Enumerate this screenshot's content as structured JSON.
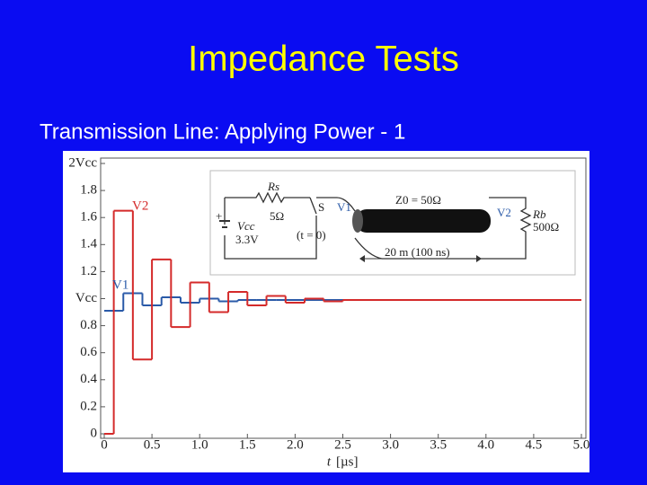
{
  "slide": {
    "title": "Impedance Tests",
    "subtitle": "Transmission Line: Applying Power - 1"
  },
  "chart_data": {
    "type": "step",
    "x_label": "t",
    "x_unit": "[µs]",
    "xlim": [
      0,
      5
    ],
    "ylim": [
      0,
      2
    ],
    "xticks": [
      0,
      0.5,
      {
        "value": 1,
        "label": "1.0"
      },
      1.5,
      {
        "value": 2,
        "label": "2.0"
      },
      2.5,
      {
        "value": 3,
        "label": "3.0"
      },
      3.5,
      {
        "value": 4,
        "label": "4.0"
      },
      4.5,
      {
        "value": 5,
        "label": "5.0"
      }
    ],
    "yticks": [
      0,
      0.2,
      0.4,
      0.6,
      0.8,
      {
        "value": 1,
        "label": "Vcc"
      },
      1.2,
      1.4,
      1.6,
      1.8,
      {
        "value": 2,
        "label": "2Vcc"
      }
    ],
    "grid": false,
    "series": [
      {
        "name": "V1",
        "color": "#2a5aa8",
        "x": [
          0,
          0.2,
          0.4,
          0.6,
          0.8,
          1.0,
          1.2,
          1.4,
          1.6,
          1.8
        ],
        "values": [
          0.91,
          1.04,
          0.95,
          1.01,
          0.97,
          1.0,
          0.98,
          0.99,
          0.99,
          0.99
        ]
      },
      {
        "name": "V2",
        "color": "#d42a2a",
        "x": [
          0,
          0.1,
          0.3,
          0.5,
          0.7,
          0.9,
          1.1,
          1.3,
          1.5,
          1.7,
          1.9,
          2.1,
          2.3,
          2.5
        ],
        "values": [
          0,
          1.65,
          0.55,
          1.29,
          0.79,
          1.12,
          0.9,
          1.05,
          0.95,
          1.02,
          0.97,
          1.0,
          0.98,
          0.99
        ]
      }
    ]
  },
  "inset": {
    "rs": "Rs",
    "rs_value": "5Ω",
    "plus": "+",
    "vcc": "Vcc",
    "vcc_value": "3.3V",
    "switch": "S",
    "switch_time": "(t = 0)",
    "v1": "V1",
    "z0": "Z0 = 50Ω",
    "v2": "V2",
    "rb": "Rb",
    "rb_value": "500Ω",
    "length": "20 m (100 ns)"
  }
}
